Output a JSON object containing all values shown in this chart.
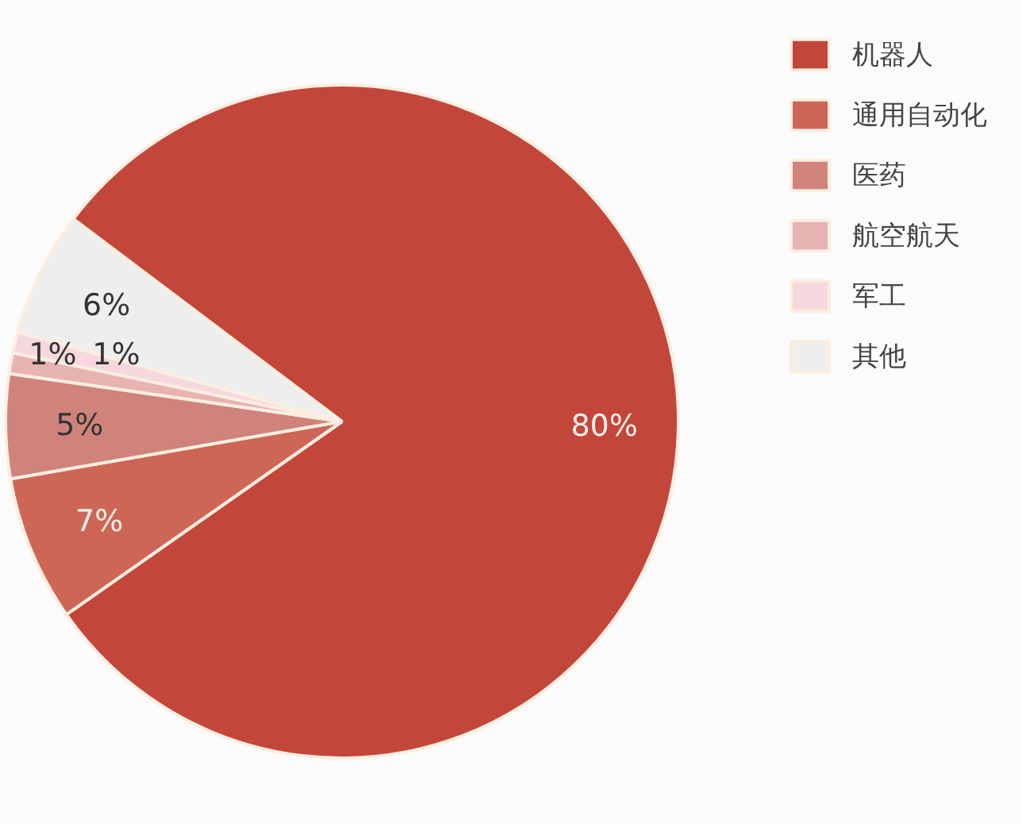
{
  "chart_data": {
    "type": "pie",
    "categories": [
      "机器人",
      "通用自动化",
      "医药",
      "航空航天",
      "军工",
      "其他"
    ],
    "values": [
      80,
      7,
      5,
      1,
      1,
      6
    ],
    "colors": [
      "#c2463a",
      "#cd6656",
      "#cf837b",
      "#e8b3b3",
      "#f6d8de",
      "#eeeeee"
    ],
    "value_labels": [
      "80%",
      "7%",
      "5%",
      "1%",
      "1%",
      "6%"
    ],
    "legend": "right"
  }
}
